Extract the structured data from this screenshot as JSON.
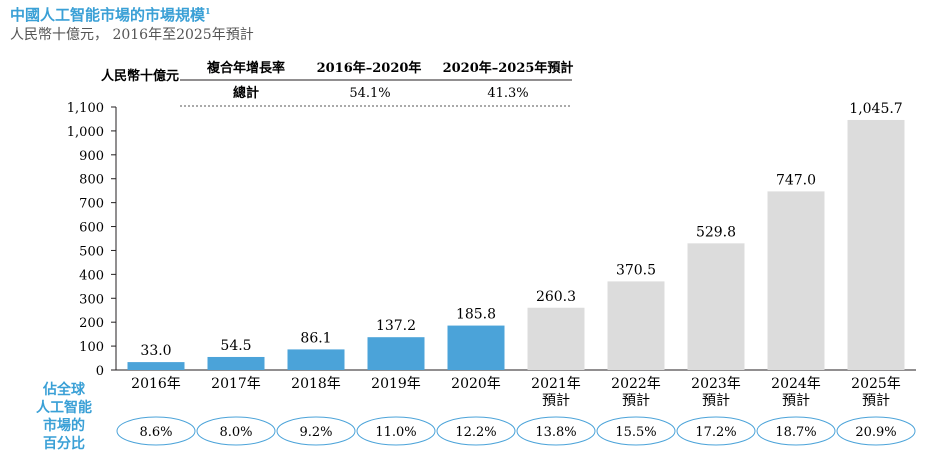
{
  "header": {
    "title": "中國人工智能市場的市場規模",
    "title_note": "1",
    "subtitle": "人民幣十億元， 2016年至2025年預計"
  },
  "cagr_table": {
    "unit_label": "人民幣十億元",
    "row_header": "複合年增長率",
    "col1": "2016年–2020年",
    "col2": "2020年–2025年預計",
    "row_label": "總計",
    "val1": "54.1%",
    "val2": "41.3%"
  },
  "share": {
    "label_lines": [
      "佔全球",
      "人工智能",
      "市場的",
      "百分比"
    ],
    "values": [
      "8.6%",
      "8.0%",
      "9.2%",
      "11.0%",
      "12.2%",
      "13.8%",
      "15.5%",
      "17.2%",
      "18.7%",
      "20.9%"
    ]
  },
  "colors": {
    "actual": "#4ba3d9",
    "forecast": "#dcdcdc",
    "accent": "#3aa0d6",
    "oval_border": "#4ba3d9"
  },
  "chart_data": {
    "type": "bar",
    "categories": [
      "2016年",
      "2017年",
      "2018年",
      "2019年",
      "2020年",
      "2021年\n預計",
      "2022年\n預計",
      "2023年\n預計",
      "2024年\n預計",
      "2025年\n預計"
    ],
    "values": [
      33.0,
      54.5,
      86.1,
      137.2,
      185.8,
      260.3,
      370.5,
      529.8,
      747.0,
      1045.7
    ],
    "value_labels": [
      "33.0",
      "54.5",
      "86.1",
      "137.2",
      "185.8",
      "260.3",
      "370.5",
      "529.8",
      "747.0",
      "1,045.7"
    ],
    "forecast_flags": [
      false,
      false,
      false,
      false,
      false,
      true,
      true,
      true,
      true,
      true
    ],
    "ylim": [
      0,
      1100
    ],
    "yticks": [
      0,
      100,
      200,
      300,
      400,
      500,
      600,
      700,
      800,
      900,
      1000,
      1100
    ],
    "ytick_labels": [
      "0",
      "100",
      "200",
      "300",
      "400",
      "500",
      "600",
      "700",
      "800",
      "900",
      "1,000",
      "1,100"
    ],
    "grid": false,
    "xlabel": "",
    "ylabel": "人民幣十億元"
  }
}
